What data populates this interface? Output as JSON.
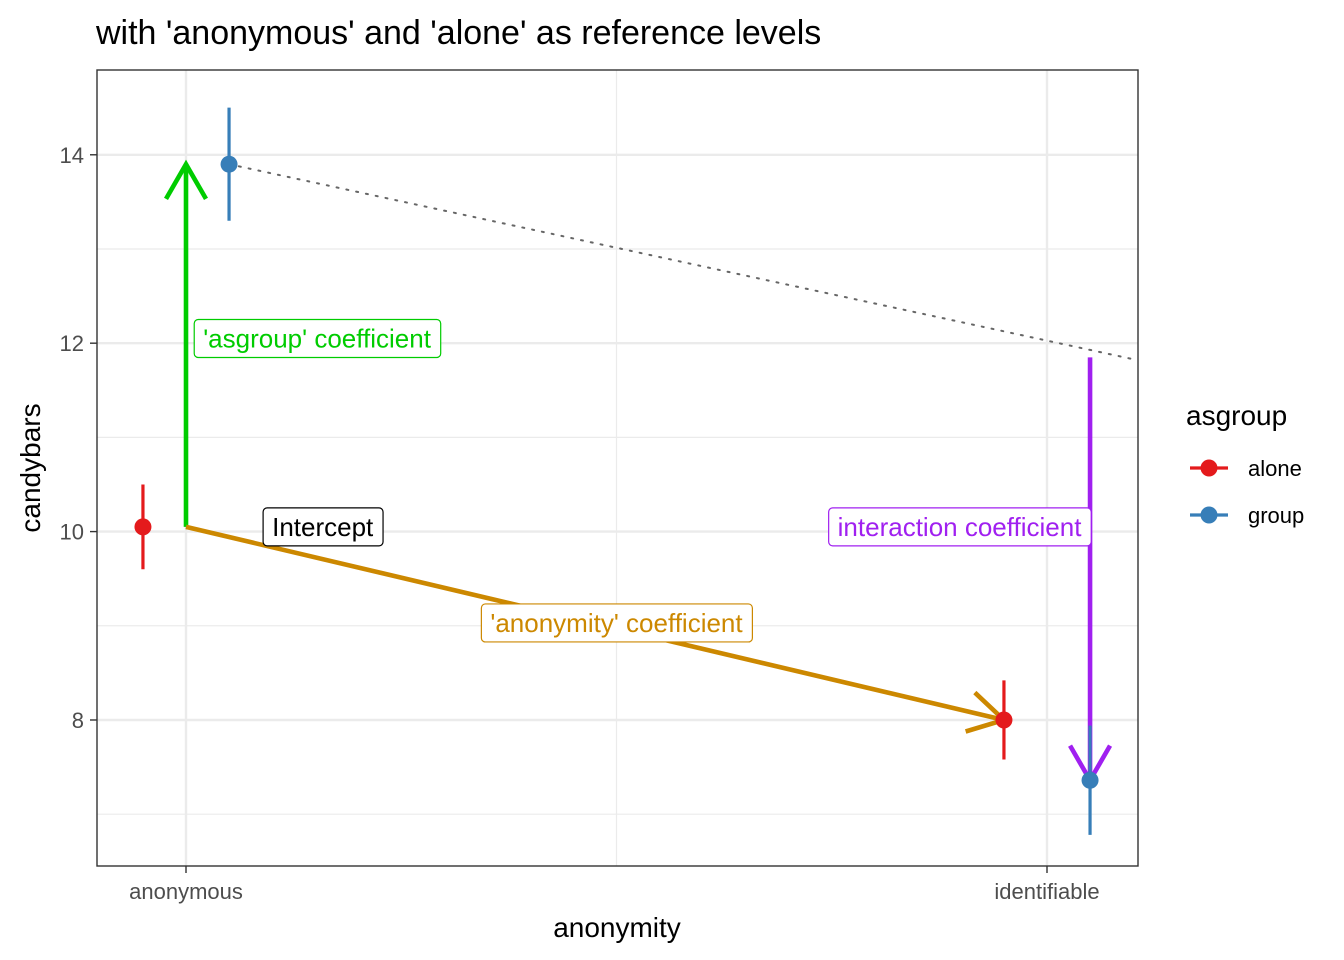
{
  "chart_data": {
    "type": "scatter",
    "title": "with 'anonymous' and 'alone' as reference levels",
    "xlabel": "anonymity",
    "ylabel": "candybars",
    "categories": [
      "anonymous",
      "identifiable"
    ],
    "ylim": [
      6.45,
      14.9
    ],
    "yticks": [
      8,
      10,
      12,
      14
    ],
    "grid": true,
    "legend": {
      "title": "asgroup",
      "position": "right",
      "entries": [
        {
          "label": "alone",
          "color": "#e41a1c"
        },
        {
          "label": "group",
          "color": "#377eb8"
        }
      ]
    },
    "series": [
      {
        "name": "alone",
        "color": "#e41a1c",
        "dodge": -0.05,
        "points": [
          {
            "category": "anonymous",
            "y": 10.05,
            "low": 9.6,
            "high": 10.5
          },
          {
            "category": "identifiable",
            "y": 8.0,
            "low": 7.58,
            "high": 8.42
          }
        ]
      },
      {
        "name": "group",
        "color": "#377eb8",
        "dodge": 0.05,
        "points": [
          {
            "category": "anonymous",
            "y": 13.9,
            "low": 13.3,
            "high": 14.5
          },
          {
            "category": "identifiable",
            "y": 7.36,
            "low": 6.78,
            "high": 7.94
          }
        ]
      }
    ],
    "dotted_line": {
      "from": {
        "x": 1.05,
        "y": 13.9
      },
      "to": {
        "x": 2.1,
        "y": 11.83
      },
      "color": "#666666"
    },
    "arrows": [
      {
        "name": "asgroup-arrow",
        "color": "#00cc00",
        "from": {
          "x": 1.0,
          "y": 10.05
        },
        "to": {
          "x": 1.0,
          "y": 13.9
        }
      },
      {
        "name": "anonymity-arrow",
        "color": "#cc8800",
        "from": {
          "x": 1.0,
          "y": 10.05
        },
        "to": {
          "x": 1.95,
          "y": 8.0
        }
      },
      {
        "name": "interaction-arrow",
        "color": "#a020f0",
        "from": {
          "x": 2.05,
          "y": 11.85
        },
        "to": {
          "x": 2.05,
          "y": 7.36
        }
      }
    ],
    "annotations": [
      {
        "name": "intercept-label",
        "text": "Intercept",
        "color": "#000000",
        "x": 1.1,
        "y": 10.05,
        "align": "start"
      },
      {
        "name": "asgroup-coefficient-label",
        "text": "'asgroup' coefficient",
        "color": "#00cc00",
        "x": 1.02,
        "y": 12.05,
        "align": "start"
      },
      {
        "name": "anonymity-coefficient-label",
        "text": "'anonymity' coefficient",
        "color": "#cc8800",
        "x": 1.5,
        "y": 9.03,
        "align": "middle"
      },
      {
        "name": "interaction-coefficient-label",
        "text": "interaction coefficient",
        "color": "#a020f0",
        "x": 2.04,
        "y": 10.05,
        "align": "end"
      }
    ]
  }
}
